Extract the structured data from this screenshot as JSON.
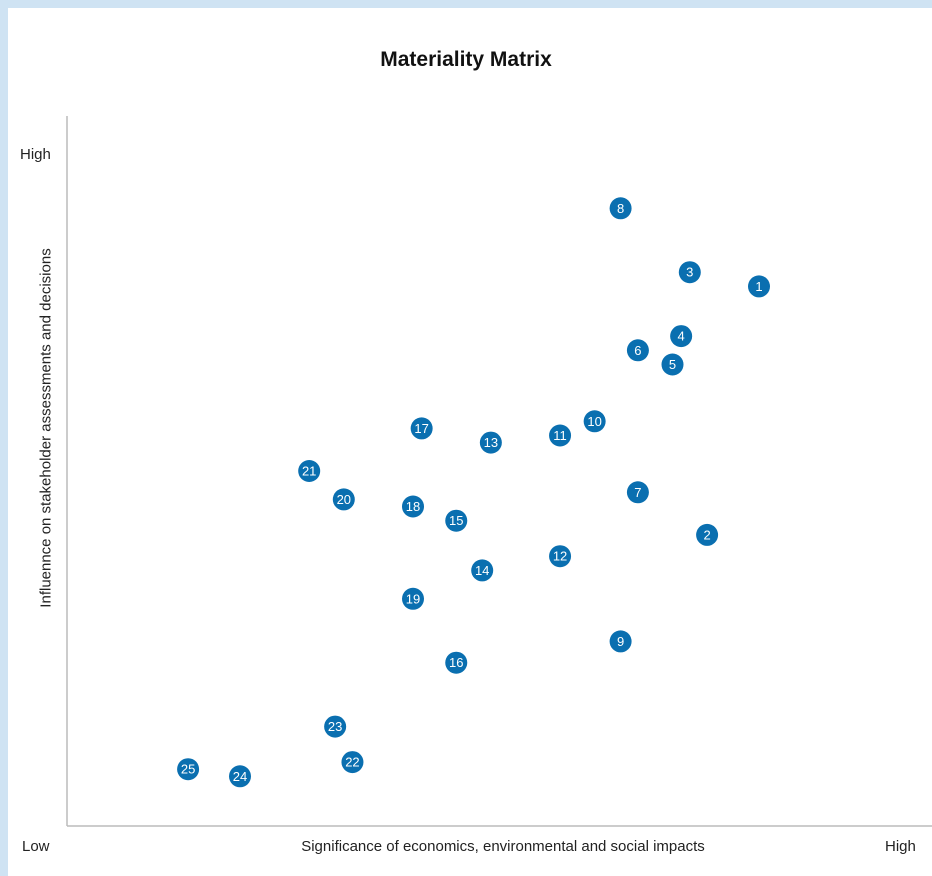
{
  "chart_data": {
    "type": "scatter",
    "title": "Materiality Matrix",
    "xlabel": "Significance of economics, environmental and social impacts",
    "ylabel": "Influennce on stakeholder assessments and decisions",
    "x_ticks": {
      "low": "Low",
      "high": "High"
    },
    "y_ticks": {
      "high": "High"
    },
    "xlim": [
      0,
      100
    ],
    "ylim": [
      0,
      100
    ],
    "grid": false,
    "marker_color": "#0a6fb0",
    "points": [
      {
        "label": "1",
        "x": 80,
        "y": 76
      },
      {
        "label": "2",
        "x": 74,
        "y": 41
      },
      {
        "label": "3",
        "x": 72,
        "y": 78
      },
      {
        "label": "4",
        "x": 71,
        "y": 69
      },
      {
        "label": "5",
        "x": 70,
        "y": 65
      },
      {
        "label": "6",
        "x": 66,
        "y": 67
      },
      {
        "label": "7",
        "x": 66,
        "y": 47
      },
      {
        "label": "8",
        "x": 64,
        "y": 87
      },
      {
        "label": "9",
        "x": 64,
        "y": 26
      },
      {
        "label": "10",
        "x": 61,
        "y": 57
      },
      {
        "label": "11",
        "x": 57,
        "y": 55
      },
      {
        "label": "12",
        "x": 57,
        "y": 38
      },
      {
        "label": "13",
        "x": 49,
        "y": 54
      },
      {
        "label": "14",
        "x": 48,
        "y": 36
      },
      {
        "label": "15",
        "x": 45,
        "y": 43
      },
      {
        "label": "16",
        "x": 45,
        "y": 23
      },
      {
        "label": "17",
        "x": 41,
        "y": 56
      },
      {
        "label": "18",
        "x": 40,
        "y": 45
      },
      {
        "label": "19",
        "x": 40,
        "y": 32
      },
      {
        "label": "20",
        "x": 32,
        "y": 46
      },
      {
        "label": "21",
        "x": 28,
        "y": 50
      },
      {
        "label": "22",
        "x": 33,
        "y": 9
      },
      {
        "label": "23",
        "x": 31,
        "y": 14
      },
      {
        "label": "24",
        "x": 20,
        "y": 7
      },
      {
        "label": "25",
        "x": 14,
        "y": 8
      }
    ]
  }
}
